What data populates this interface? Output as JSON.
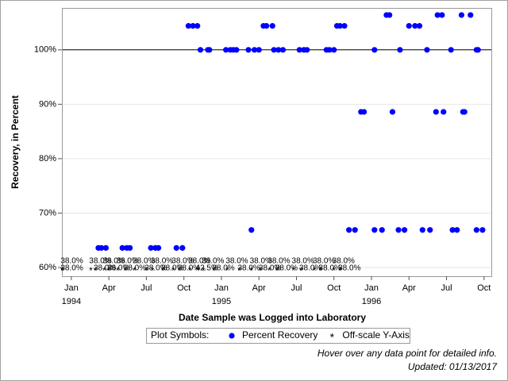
{
  "chart_data": {
    "type": "scatter",
    "y_label": "Recovery, in Percent",
    "x_label": "Date Sample was Logged into Laboratory",
    "ylim": [
      58.4,
      107.7
    ],
    "yticks": [
      {
        "value": 60,
        "label": "60%"
      },
      {
        "value": 70,
        "label": "70%"
      },
      {
        "value": 80,
        "label": "80%"
      },
      {
        "value": 90,
        "label": "90%"
      },
      {
        "value": 100,
        "label": "100%"
      }
    ],
    "reference_line": 100,
    "grid": true,
    "xlim": [
      1993.937,
      1996.804
    ],
    "xticks": [
      {
        "value": 1994.0,
        "label": "Jan"
      },
      {
        "value": 1994.25,
        "label": "Apr"
      },
      {
        "value": 1994.5,
        "label": "Jul"
      },
      {
        "value": 1994.75,
        "label": "Oct"
      },
      {
        "value": 1995.0,
        "label": "Jan"
      },
      {
        "value": 1995.25,
        "label": "Apr"
      },
      {
        "value": 1995.5,
        "label": "Jul"
      },
      {
        "value": 1995.75,
        "label": "Oct"
      },
      {
        "value": 1996.0,
        "label": "Jan"
      },
      {
        "value": 1996.25,
        "label": "Apr"
      },
      {
        "value": 1996.5,
        "label": "Jul"
      },
      {
        "value": 1996.75,
        "label": "Oct"
      }
    ],
    "xyears": [
      {
        "value": 1994.0,
        "label": "1994"
      },
      {
        "value": 1995.0,
        "label": "1995"
      },
      {
        "value": 1996.0,
        "label": "1996"
      }
    ],
    "legend_title": "Plot Symbols:",
    "series": [
      {
        "name": "Percent Recovery",
        "color": "#0000ff",
        "marker": "dot",
        "x": [
          1994.18,
          1994.2,
          1994.23,
          1994.34,
          1994.37,
          1994.39,
          1994.53,
          1994.56,
          1994.58,
          1994.7,
          1994.74,
          1994.78,
          1994.81,
          1994.84,
          1994.86,
          1994.91,
          1994.92,
          1995.03,
          1995.06,
          1995.08,
          1995.1,
          1995.18,
          1995.2,
          1995.22,
          1995.25,
          1995.28,
          1995.3,
          1995.34,
          1995.35,
          1995.38,
          1995.41,
          1995.52,
          1995.55,
          1995.57,
          1995.7,
          1995.72,
          1995.75,
          1995.77,
          1995.79,
          1995.82,
          1995.85,
          1995.89,
          1995.93,
          1995.95,
          1996.02,
          1996.02,
          1996.07,
          1996.1,
          1996.12,
          1996.14,
          1996.19,
          1996.18,
          1996.22,
          1996.25,
          1996.29,
          1996.32,
          1996.37,
          1996.34,
          1996.39,
          1996.43,
          1996.48,
          1996.44,
          1996.47,
          1996.53,
          1996.54,
          1996.57,
          1996.6,
          1996.61,
          1996.62,
          1996.66,
          1996.7,
          1996.71,
          1996.7,
          1996.74
        ],
        "values": [
          63.6,
          63.6,
          63.6,
          63.6,
          63.6,
          63.6,
          63.6,
          63.6,
          63.6,
          63.6,
          63.6,
          104.4,
          104.4,
          104.4,
          100,
          100,
          100,
          100,
          100,
          100,
          100,
          100,
          66.9,
          100,
          100,
          104.4,
          104.4,
          104.4,
          100,
          100,
          100,
          100,
          100,
          100,
          100,
          100,
          100,
          104.4,
          104.4,
          104.4,
          66.9,
          66.9,
          88.6,
          88.6,
          100,
          66.9,
          66.9,
          106.4,
          106.4,
          88.6,
          100,
          66.9,
          66.9,
          104.4,
          104.4,
          104.4,
          100,
          66.9,
          66.9,
          88.6,
          88.6,
          106.4,
          106.4,
          100,
          66.9,
          66.9,
          106.4,
          88.6,
          88.6,
          106.4,
          100,
          100,
          66.9,
          66.9
        ]
      },
      {
        "name": "Off-scale Y-Axis",
        "color": "#ff0000",
        "marker": "asterisk",
        "x": [
          1993.94,
          1993.94,
          1994.13,
          1994.16,
          1994.22,
          1994.25,
          1994.31,
          1994.36,
          1994.42,
          1994.5,
          1994.54,
          1994.61,
          1994.68,
          1994.72,
          1994.79,
          1994.84,
          1994.88,
          1994.95,
          1995.04,
          1995.12,
          1995.2,
          1995.26,
          1995.32,
          1995.37,
          1995.48,
          1995.53,
          1995.62,
          1995.66,
          1995.75,
          1995.79
        ],
        "values": [
          38.0,
          38.0,
          38.0,
          38.0,
          38.0,
          38.0,
          38.0,
          38.0,
          38.0,
          38.0,
          38.0,
          38.0,
          38.0,
          38.0,
          38.0,
          42.5,
          38.0,
          38.0,
          38.0,
          38.0,
          38.0,
          38.0,
          38.0,
          38.0,
          38.0,
          38.0,
          38.0,
          38.0,
          38.0,
          38.0
        ],
        "value_labels": [
          "38.0%",
          "38.0%",
          "38.0%",
          "38.0%",
          "38.0%",
          "38.0%",
          "38.0%",
          "38.0%",
          "38.0%",
          "38.0%",
          "38.0%",
          "38.0%",
          "38.0%",
          "38.0%",
          "38.0%",
          "42.5%",
          "38.0%",
          "38.0%",
          "38.0%",
          "38.0%",
          "38.0%",
          "38.0%",
          "38.0%",
          "38.0%",
          "38.0%",
          "38.0%",
          "38.0%",
          "38.0%",
          "38.0%",
          "38.0%"
        ]
      }
    ],
    "notes": [
      "Hover over any data point for detailed info.",
      "Updated: 01/13/2017"
    ]
  }
}
